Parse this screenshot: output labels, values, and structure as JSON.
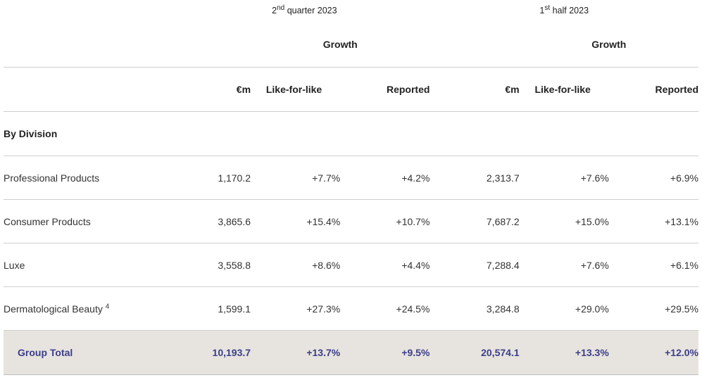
{
  "header": {
    "q2": {
      "sup_pre": "2",
      "sup": "nd",
      "text": "quarter 2023"
    },
    "h1": {
      "sup_pre": "1",
      "sup": "st",
      "text": "half 2023"
    },
    "growth_left": "Growth",
    "growth_right": "Growth",
    "columns": [
      "€m",
      "Like-for-like",
      "Reported",
      "€m",
      "Like-for-like",
      "Reported"
    ]
  },
  "section_label": "By Division",
  "rows": [
    {
      "label": "Professional Products",
      "footnote": "",
      "values": [
        "1,170.2",
        "+7.7%",
        "+4.2%",
        "2,313.7",
        "+7.6%",
        "+6.9%"
      ]
    },
    {
      "label": "Consumer Products",
      "footnote": "",
      "values": [
        "3,865.6",
        "+15.4%",
        "+10.7%",
        "7,687.2",
        "+15.0%",
        "+13.1%"
      ]
    },
    {
      "label": "Luxe",
      "footnote": "",
      "values": [
        "3,558.8",
        "+8.6%",
        "+4.4%",
        "7,288.4",
        "+7.6%",
        "+6.1%"
      ]
    },
    {
      "label": "Dermatological Beauty",
      "footnote": "4",
      "values": [
        "1,599.1",
        "+27.3%",
        "+24.5%",
        "3,284.8",
        "+29.0%",
        "+29.5%"
      ]
    }
  ],
  "total": {
    "label": "Group Total",
    "values": [
      "10,193.7",
      "+13.7%",
      "+9.5%",
      "20,574.1",
      "+13.3%",
      "+12.0%"
    ]
  },
  "colors": {
    "total_text": "#3b3d8a",
    "total_background": "#e7e4df",
    "rule": "#cfcfcf"
  }
}
